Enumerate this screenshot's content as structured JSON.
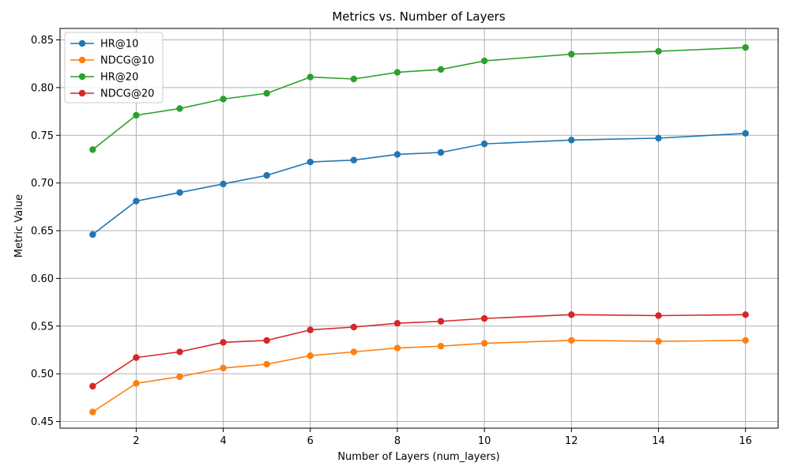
{
  "chart_data": {
    "type": "line",
    "title": "Metrics vs. Number of Layers",
    "xlabel": "Number of Layers (num_layers)",
    "ylabel": "Metric Value",
    "x": [
      1,
      2,
      3,
      4,
      5,
      6,
      7,
      8,
      9,
      10,
      12,
      14,
      16
    ],
    "xlim": [
      0.25,
      16.75
    ],
    "ylim": [
      0.443,
      0.862
    ],
    "xticks": [
      2,
      4,
      6,
      8,
      10,
      12,
      14,
      16
    ],
    "xtick_labels": [
      "2",
      "4",
      "6",
      "8",
      "10",
      "12",
      "14",
      "16"
    ],
    "yticks": [
      0.45,
      0.5,
      0.55,
      0.6,
      0.65,
      0.7,
      0.75,
      0.8,
      0.85
    ],
    "ytick_labels": [
      "0.45",
      "0.50",
      "0.55",
      "0.60",
      "0.65",
      "0.70",
      "0.75",
      "0.80",
      "0.85"
    ],
    "grid": true,
    "legend_position": "top-left",
    "series": [
      {
        "name": "HR@10",
        "color": "#1f77b4",
        "values": [
          0.646,
          0.681,
          0.69,
          0.699,
          0.708,
          0.722,
          0.724,
          0.73,
          0.732,
          0.741,
          0.745,
          0.747,
          0.752
        ]
      },
      {
        "name": "NDCG@10",
        "color": "#ff7f0e",
        "values": [
          0.46,
          0.49,
          0.497,
          0.506,
          0.51,
          0.519,
          0.523,
          0.527,
          0.529,
          0.532,
          0.535,
          0.534,
          0.535
        ]
      },
      {
        "name": "HR@20",
        "color": "#2ca02c",
        "values": [
          0.735,
          0.771,
          0.778,
          0.788,
          0.794,
          0.811,
          0.809,
          0.816,
          0.819,
          0.828,
          0.835,
          0.838,
          0.842
        ]
      },
      {
        "name": "NDCG@20",
        "color": "#d62728",
        "values": [
          0.487,
          0.517,
          0.523,
          0.533,
          0.535,
          0.546,
          0.549,
          0.553,
          0.555,
          0.558,
          0.562,
          0.561,
          0.562
        ]
      }
    ]
  }
}
